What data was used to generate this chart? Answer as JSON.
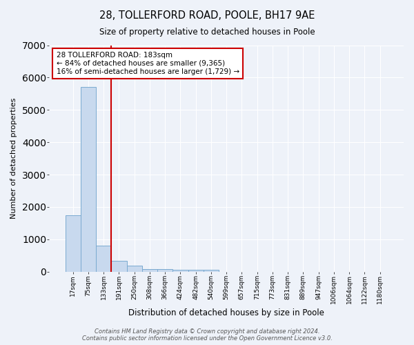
{
  "title1": "28, TOLLERFORD ROAD, POOLE, BH17 9AE",
  "title2": "Size of property relative to detached houses in Poole",
  "xlabel": "Distribution of detached houses by size in Poole",
  "ylabel": "Number of detached properties",
  "bar_labels": [
    "17sqm",
    "75sqm",
    "133sqm",
    "191sqm",
    "250sqm",
    "308sqm",
    "366sqm",
    "424sqm",
    "482sqm",
    "540sqm",
    "599sqm",
    "657sqm",
    "715sqm",
    "773sqm",
    "831sqm",
    "889sqm",
    "947sqm",
    "1006sqm",
    "1064sqm",
    "1122sqm",
    "1180sqm"
  ],
  "bar_values": [
    1750,
    5700,
    800,
    330,
    180,
    90,
    75,
    60,
    55,
    55,
    0,
    0,
    0,
    0,
    0,
    0,
    0,
    0,
    0,
    0,
    0
  ],
  "bar_color": "#c8d9ee",
  "bar_edge_color": "#7aaad0",
  "background_color": "#eef2f9",
  "grid_color": "#ffffff",
  "red_line_x": 2.5,
  "annotation_text": "28 TOLLERFORD ROAD: 183sqm\n← 84% of detached houses are smaller (9,365)\n16% of semi-detached houses are larger (1,729) →",
  "annotation_box_color": "#ffffff",
  "annotation_border_color": "#cc0000",
  "footer_line1": "Contains HM Land Registry data © Crown copyright and database right 2024.",
  "footer_line2": "Contains public sector information licensed under the Open Government Licence v3.0.",
  "ylim": [
    0,
    7000
  ],
  "yticks": [
    0,
    1000,
    2000,
    3000,
    4000,
    5000,
    6000,
    7000
  ]
}
